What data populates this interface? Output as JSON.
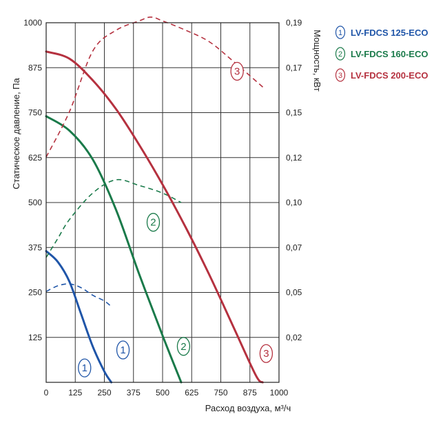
{
  "chart_data": {
    "type": "line",
    "xlabel": "Расход воздуха, м³/ч",
    "ylabel": "Статическое давление, Па",
    "y2label": "Мощность, кВт",
    "xlim": [
      0,
      1000
    ],
    "ylim": [
      0,
      1000
    ],
    "y2lim": [
      0,
      0.19
    ],
    "x_ticks": [
      "0",
      "125",
      "250",
      "375",
      "500",
      "625",
      "750",
      "875",
      "1000"
    ],
    "y_ticks": [
      "125",
      "250",
      "375",
      "500",
      "625",
      "750",
      "875",
      "1000"
    ],
    "y2_ticks": [
      "0,02",
      "0,05",
      "0,07",
      "0,10",
      "0,12",
      "0,15",
      "0,17",
      "0,19"
    ],
    "grid": true,
    "legend_position": "top-right, outside plot",
    "series": [
      {
        "name": "LV-FDCS 125-ECO",
        "marker": "1",
        "color": "#1f55a8",
        "pressure": [
          [
            0,
            365
          ],
          [
            50,
            335
          ],
          [
            100,
            280
          ],
          [
            150,
            190
          ],
          [
            200,
            100
          ],
          [
            250,
            30
          ],
          [
            280,
            0
          ]
        ],
        "power": [
          [
            0,
            0.048
          ],
          [
            50,
            0.051
          ],
          [
            100,
            0.052
          ],
          [
            150,
            0.05
          ],
          [
            200,
            0.046
          ],
          [
            250,
            0.043
          ],
          [
            280,
            0.04
          ]
        ]
      },
      {
        "name": "LV-FDCS 160-ECO",
        "marker": "2",
        "color": "#1a7a4a",
        "pressure": [
          [
            0,
            740
          ],
          [
            100,
            700
          ],
          [
            200,
            620
          ],
          [
            300,
            480
          ],
          [
            400,
            300
          ],
          [
            500,
            130
          ],
          [
            580,
            0
          ]
        ],
        "power": [
          [
            0,
            0.066
          ],
          [
            50,
            0.076
          ],
          [
            100,
            0.086
          ],
          [
            200,
            0.1
          ],
          [
            300,
            0.107
          ],
          [
            400,
            0.104
          ],
          [
            500,
            0.1
          ],
          [
            580,
            0.095
          ]
        ]
      },
      {
        "name": "LV-FDCS 200-ECO",
        "marker": "3",
        "color": "#b5313f",
        "pressure": [
          [
            0,
            920
          ],
          [
            100,
            900
          ],
          [
            200,
            840
          ],
          [
            300,
            760
          ],
          [
            400,
            660
          ],
          [
            500,
            550
          ],
          [
            600,
            430
          ],
          [
            700,
            300
          ],
          [
            800,
            160
          ],
          [
            900,
            20
          ],
          [
            930,
            0
          ]
        ],
        "power": [
          [
            0,
            0.119
          ],
          [
            100,
            0.143
          ],
          [
            200,
            0.175
          ],
          [
            300,
            0.186
          ],
          [
            400,
            0.191
          ],
          [
            450,
            0.193
          ],
          [
            500,
            0.191
          ],
          [
            600,
            0.186
          ],
          [
            700,
            0.18
          ],
          [
            800,
            0.17
          ],
          [
            940,
            0.155
          ]
        ]
      }
    ]
  }
}
